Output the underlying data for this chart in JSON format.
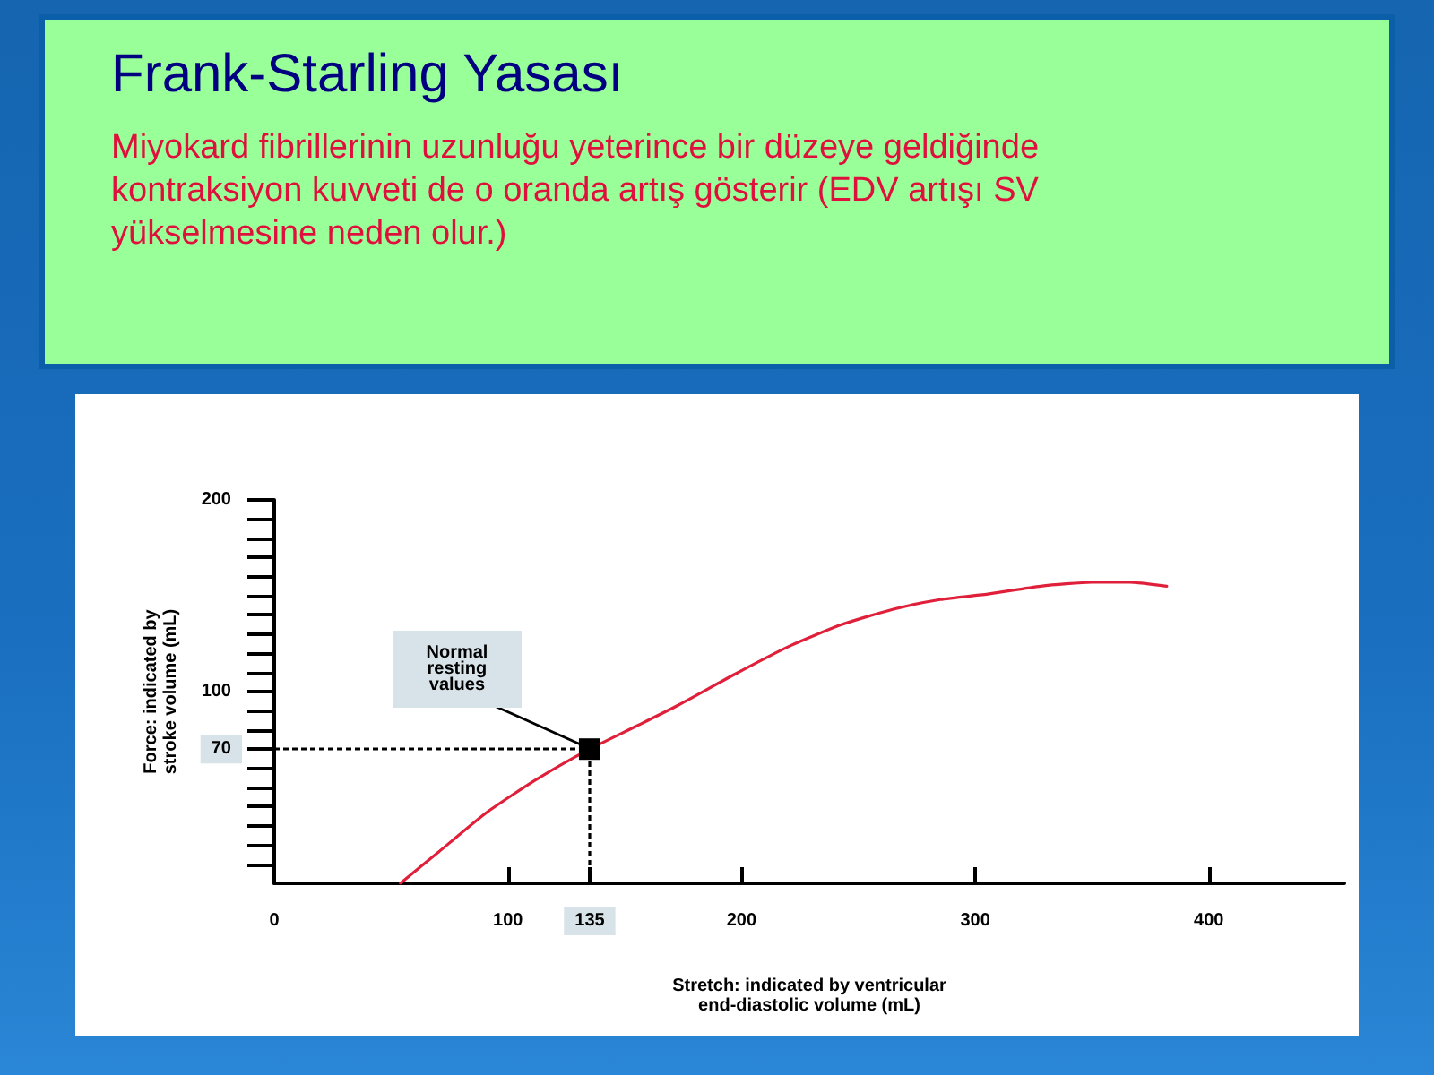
{
  "chart_data": {
    "type": "line",
    "title": "Frank-Starling Yasası",
    "subtitle": "Miyokard fibrillerinin uzunluğu yeterince bir düzeye geldiğinde kontraksiyon kuvveti de o oranda artış gösterir (EDV artışı SV yükselmesine neden olur.)",
    "xlabel": "Stretch: indicated by ventricular\nend-diastolic volume (mL)",
    "ylabel": "Force: indicated by\nstroke volume (mL)",
    "x": [
      54,
      70,
      91,
      112,
      135,
      155,
      173,
      197,
      221,
      243,
      265,
      285,
      306,
      328,
      350,
      366,
      382
    ],
    "series": [
      {
        "color": "#e0203a",
        "values": [
          0,
          16,
          37,
          54,
          70,
          82,
          93,
          109,
          124,
          135,
          143,
          148,
          151,
          155,
          157,
          157,
          155
        ]
      }
    ],
    "ref_lines": [
      {
        "axis": "y",
        "value": 70,
        "color": "#000000",
        "line_style": "dotted"
      },
      {
        "axis": "x",
        "value": 135,
        "color": "#000000",
        "line_style": "dotted"
      }
    ],
    "xlim": [
      0,
      458
    ],
    "xticks": [
      0,
      100,
      135,
      200,
      300,
      400
    ],
    "ylim": [
      0,
      200
    ],
    "yticks": [
      {
        "value": 10,
        "label": null
      },
      {
        "value": 20,
        "label": null
      },
      {
        "value": 30,
        "label": null
      },
      {
        "value": 40,
        "label": null
      },
      {
        "value": 50,
        "label": null
      },
      {
        "value": 60,
        "label": null
      },
      70,
      {
        "value": 80,
        "label": null
      },
      {
        "value": 90,
        "label": null
      },
      100,
      {
        "value": 110,
        "label": null
      },
      {
        "value": 120,
        "label": null
      },
      {
        "value": 130,
        "label": null
      },
      {
        "value": 140,
        "label": null
      },
      {
        "value": 150,
        "label": null
      },
      {
        "value": 160,
        "label": null
      },
      {
        "value": 170,
        "label": null
      },
      {
        "value": 180,
        "label": null
      },
      {
        "value": 190,
        "label": null
      },
      200
    ],
    "annotations": [
      {
        "text": "Normal\nresting\nvalues",
        "x": 135,
        "y": 70
      }
    ],
    "marker": "none",
    "line_style": "solid",
    "grid": false
  }
}
